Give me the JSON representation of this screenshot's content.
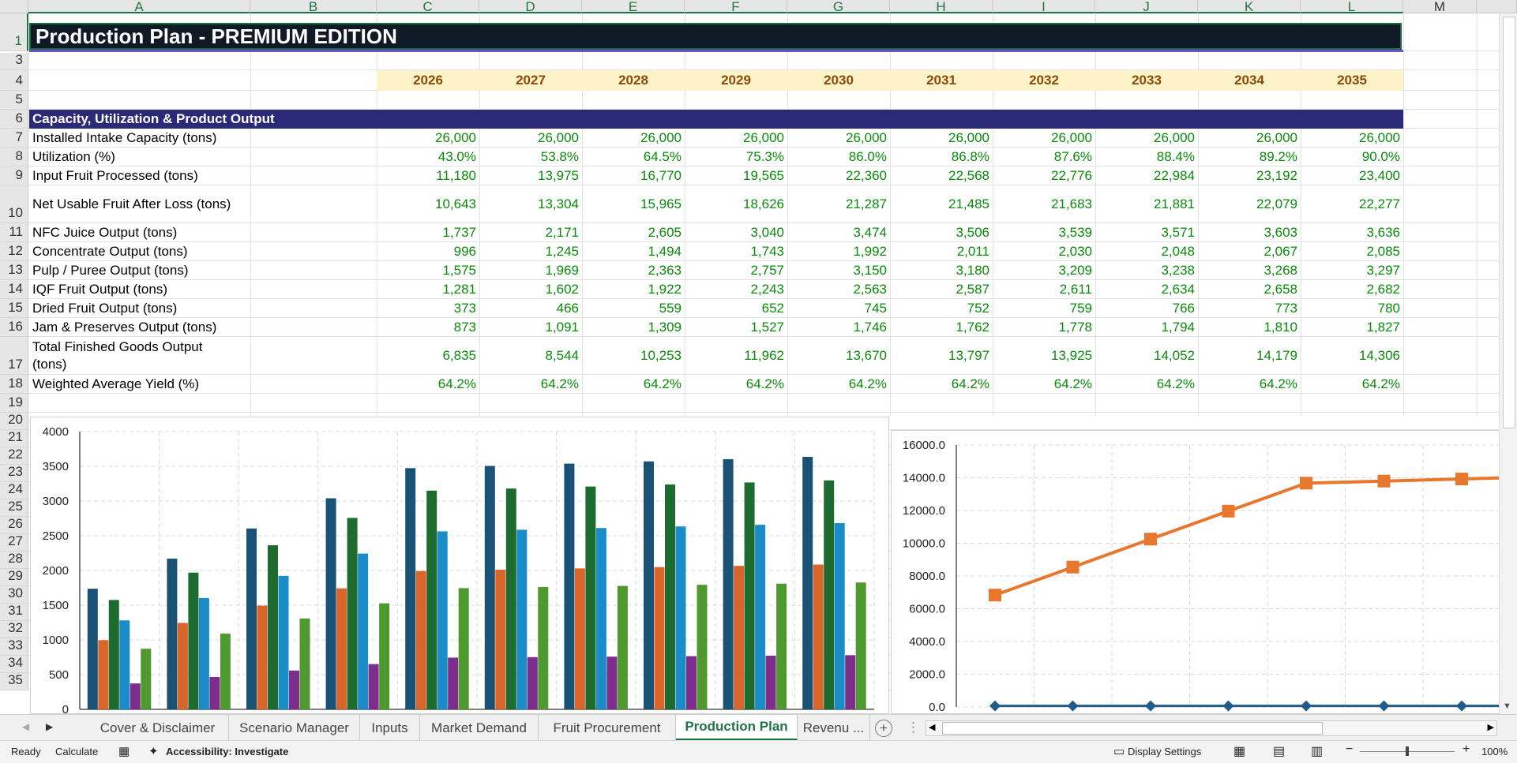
{
  "columns": [
    "A",
    "B",
    "C",
    "D",
    "E",
    "F",
    "G",
    "H",
    "I",
    "J",
    "K",
    "L",
    "M"
  ],
  "rows": [
    "1",
    "3",
    "4",
    "5",
    "6",
    "7",
    "8",
    "9",
    "10",
    "11",
    "12",
    "13",
    "14",
    "15",
    "16",
    "17",
    "18",
    "19",
    "20",
    "21",
    "22",
    "23",
    "24",
    "25",
    "26",
    "27",
    "28",
    "29",
    "30",
    "31",
    "32",
    "33",
    "34",
    "35"
  ],
  "title": "Production Plan - PREMIUM EDITION",
  "years": [
    "2026",
    "2027",
    "2028",
    "2029",
    "2030",
    "2031",
    "2032",
    "2033",
    "2034",
    "2035"
  ],
  "section_header": "Capacity, Utilization & Product Output",
  "table": [
    {
      "label": "Installed Intake Capacity (tons)",
      "values": [
        "26,000",
        "26,000",
        "26,000",
        "26,000",
        "26,000",
        "26,000",
        "26,000",
        "26,000",
        "26,000",
        "26,000"
      ]
    },
    {
      "label": "Utilization (%)",
      "values": [
        "43.0%",
        "53.8%",
        "64.5%",
        "75.3%",
        "86.0%",
        "86.8%",
        "87.6%",
        "88.4%",
        "89.2%",
        "90.0%"
      ]
    },
    {
      "label": "Input Fruit Processed (tons)",
      "values": [
        "11,180",
        "13,975",
        "16,770",
        "19,565",
        "22,360",
        "22,568",
        "22,776",
        "22,984",
        "23,192",
        "23,400"
      ]
    },
    {
      "label": "Net Usable Fruit After Loss (tons)",
      "values": [
        "10,643",
        "13,304",
        "15,965",
        "18,626",
        "21,287",
        "21,485",
        "21,683",
        "21,881",
        "22,079",
        "22,277"
      ]
    },
    {
      "label": "NFC Juice Output (tons)",
      "values": [
        "1,737",
        "2,171",
        "2,605",
        "3,040",
        "3,474",
        "3,506",
        "3,539",
        "3,571",
        "3,603",
        "3,636"
      ]
    },
    {
      "label": "Concentrate Output (tons)",
      "values": [
        "996",
        "1,245",
        "1,494",
        "1,743",
        "1,992",
        "2,011",
        "2,030",
        "2,048",
        "2,067",
        "2,085"
      ]
    },
    {
      "label": "Pulp / Puree Output (tons)",
      "values": [
        "1,575",
        "1,969",
        "2,363",
        "2,757",
        "3,150",
        "3,180",
        "3,209",
        "3,238",
        "3,268",
        "3,297"
      ]
    },
    {
      "label": "IQF Fruit Output (tons)",
      "values": [
        "1,281",
        "1,602",
        "1,922",
        "2,243",
        "2,563",
        "2,587",
        "2,611",
        "2,634",
        "2,658",
        "2,682"
      ]
    },
    {
      "label": "Dried Fruit Output (tons)",
      "values": [
        "373",
        "466",
        "559",
        "652",
        "745",
        "752",
        "759",
        "766",
        "773",
        "780"
      ]
    },
    {
      "label": "Jam & Preserves Output (tons)",
      "values": [
        "873",
        "1,091",
        "1,309",
        "1,527",
        "1,746",
        "1,762",
        "1,778",
        "1,794",
        "1,810",
        "1,827"
      ]
    },
    {
      "label": "Total Finished Goods Output (tons)",
      "label_line1": "Total Finished Goods Output",
      "label_line2": "(tons)",
      "values": [
        "6,835",
        "8,544",
        "10,253",
        "11,962",
        "13,670",
        "13,797",
        "13,925",
        "14,052",
        "14,179",
        "14,306"
      ]
    },
    {
      "label": "Weighted Average Yield (%)",
      "values": [
        "64.2%",
        "64.2%",
        "64.2%",
        "64.2%",
        "64.2%",
        "64.2%",
        "64.2%",
        "64.2%",
        "64.2%",
        "64.2%"
      ]
    }
  ],
  "chart_data": [
    {
      "type": "bar",
      "y_ticks": [
        "4000",
        "3500",
        "3000",
        "2500",
        "2000",
        "1500",
        "1000",
        "500",
        "0"
      ],
      "ylim": [
        0,
        4000
      ],
      "grid": true,
      "colors": [
        "#1a5276",
        "#d9652b",
        "#1e6b2f",
        "#1a8cc8",
        "#7d2e8c",
        "#4f9a2f"
      ],
      "series": [
        {
          "values": [
            1737,
            2171,
            2605,
            3040,
            3474,
            3506,
            3539,
            3571,
            3603,
            3636
          ]
        },
        {
          "values": [
            996,
            1245,
            1494,
            1743,
            1992,
            2011,
            2030,
            2048,
            2067,
            2085
          ]
        },
        {
          "values": [
            1575,
            1969,
            2363,
            2757,
            3150,
            3180,
            3209,
            3238,
            3268,
            3297
          ]
        },
        {
          "values": [
            1281,
            1602,
            1922,
            2243,
            2563,
            2587,
            2611,
            2634,
            2658,
            2682
          ]
        },
        {
          "values": [
            373,
            466,
            559,
            652,
            745,
            752,
            759,
            766,
            773,
            780
          ]
        },
        {
          "values": [
            873,
            1091,
            1309,
            1527,
            1746,
            1762,
            1778,
            1794,
            1810,
            1827
          ]
        }
      ]
    },
    {
      "type": "line",
      "y_ticks": [
        "16000.0",
        "14000.0",
        "12000.0",
        "10000.0",
        "8000.0",
        "6000.0",
        "4000.0",
        "2000.0",
        "0.0"
      ],
      "ylim": [
        0,
        16000
      ],
      "grid": true,
      "series": [
        {
          "color": "#e8772e",
          "marker": "square",
          "values": [
            6835,
            8544,
            10253,
            11962,
            13670,
            13797,
            13925,
            14052
          ]
        },
        {
          "color": "#1f5c8a",
          "marker": "diamond",
          "values": [
            64.2,
            64.2,
            64.2,
            64.2,
            64.2,
            64.2,
            64.2,
            64.2
          ]
        }
      ]
    }
  ],
  "tabs": [
    "Cover & Disclaimer",
    "Scenario Manager",
    "Inputs",
    "Market Demand",
    "Fruit Procurement",
    "Production Plan",
    "Revenu ..."
  ],
  "active_tab": "Production Plan",
  "status": {
    "ready": "Ready",
    "calculate": "Calculate",
    "accessibility": "Accessibility: Investigate",
    "display_settings": "Display Settings",
    "zoom": "100%"
  },
  "icons": [
    "add-sheet-icon",
    "scroll-left-icon",
    "scroll-right-icon",
    "normal-view-icon",
    "page-layout-icon",
    "page-break-icon",
    "macro-icon",
    "accessibility-icon",
    "display-icon"
  ]
}
